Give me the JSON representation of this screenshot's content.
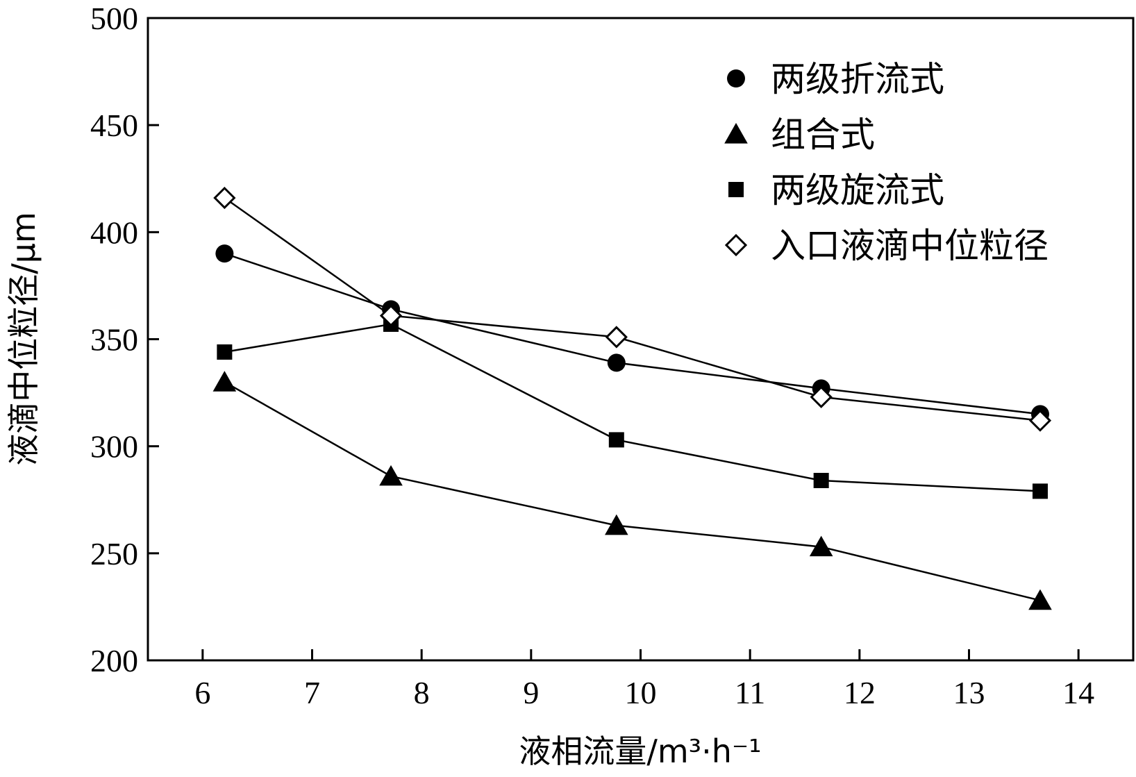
{
  "chart_data": {
    "type": "line",
    "title": "",
    "xlabel": "液相流量/m³·h⁻¹",
    "ylabel": "液滴中位粒径/μm",
    "xlim": [
      5.5,
      14.5
    ],
    "ylim": [
      200,
      500
    ],
    "xticks": [
      6,
      7,
      8,
      9,
      10,
      11,
      12,
      13,
      14
    ],
    "yticks": [
      200,
      250,
      300,
      350,
      400,
      450,
      500
    ],
    "grid": false,
    "legend_position": "top-right",
    "series": [
      {
        "name": "两级折流式",
        "marker": "circle",
        "x": [
          6.2,
          7.72,
          9.78,
          11.65,
          13.65
        ],
        "values": [
          390,
          364,
          339,
          327,
          315
        ]
      },
      {
        "name": "组合式",
        "marker": "triangle",
        "x": [
          6.2,
          7.72,
          9.78,
          11.65,
          13.65
        ],
        "values": [
          330,
          286,
          263,
          253,
          228
        ]
      },
      {
        "name": "两级旋流式",
        "marker": "square",
        "x": [
          6.2,
          7.72,
          9.78,
          11.65,
          13.65
        ],
        "values": [
          344,
          357,
          303,
          284,
          279
        ]
      },
      {
        "name": "入口液滴中位粒径",
        "marker": "diamond-open",
        "x": [
          6.2,
          7.72,
          9.78,
          11.65,
          13.65
        ],
        "values": [
          416,
          361,
          351,
          323,
          312
        ]
      }
    ]
  }
}
